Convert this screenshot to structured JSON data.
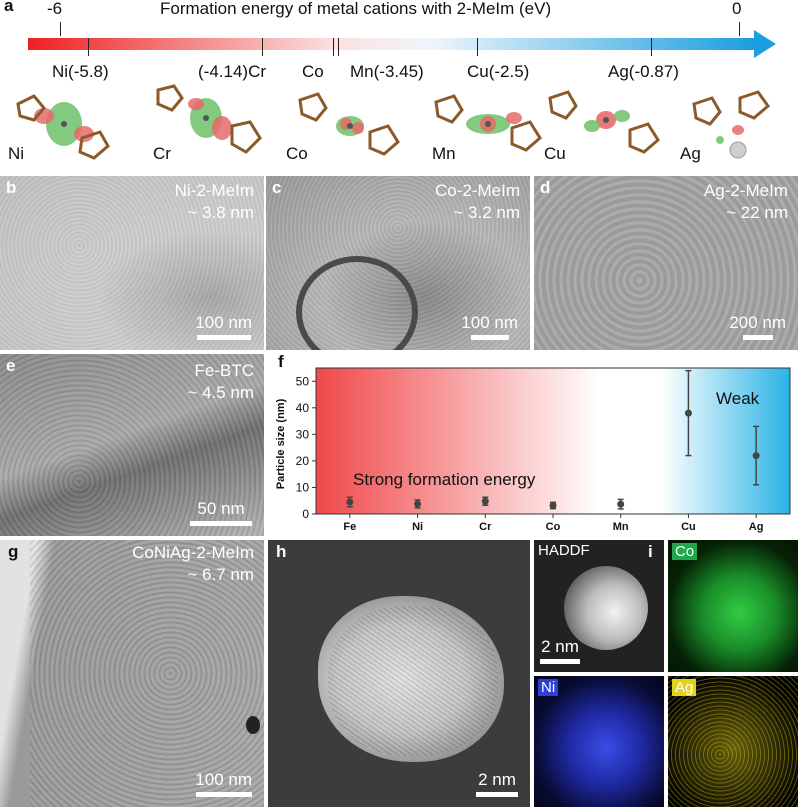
{
  "panel_a": {
    "letter": "a",
    "title": "Formation energy of metal cations with 2-MeIm (eV)",
    "scale_min": "-6",
    "scale_max": "0",
    "gradient_colors": [
      "#ee2424",
      "#ffffff",
      "#1a9ee0"
    ],
    "energy_labels": [
      "Ni(-5.8)",
      "(-4.14)Cr",
      "Co",
      "Mn(-3.45)",
      "Cu(-2.5)",
      "Ag(-0.87)"
    ],
    "molecules": [
      "Ni",
      "Cr",
      "Co",
      "Mn",
      "Cu",
      "Ag"
    ]
  },
  "panel_b": {
    "letter": "b",
    "line1": "Ni-2-MeIm",
    "line2": "~ 3.8 nm",
    "scale": "100 nm"
  },
  "panel_c": {
    "letter": "c",
    "line1": "Co-2-MeIm",
    "line2": "~ 3.2 nm",
    "scale": "100 nm"
  },
  "panel_d": {
    "letter": "d",
    "line1": "Ag-2-MeIm",
    "line2": "~ 22 nm",
    "scale": "200 nm"
  },
  "panel_e": {
    "letter": "e",
    "line1": "Fe-BTC",
    "line2": "~ 4.5 nm",
    "scale": "50 nm"
  },
  "panel_f": {
    "letter": "f"
  },
  "panel_g": {
    "letter": "g",
    "line1": "CoNiAg-2-MeIm",
    "line2": "~ 6.7 nm",
    "scale": "100 nm"
  },
  "panel_h": {
    "letter": "h",
    "scale": "2 nm"
  },
  "panel_i": {
    "letter": "i",
    "haddf_label": "HADDF",
    "scale": "2 nm",
    "maps": [
      {
        "label": "Co",
        "color": "#1fa74a"
      },
      {
        "label": "Ni",
        "color": "#2c3fd8"
      },
      {
        "label": "Ag",
        "color": "#e2d21c"
      }
    ]
  },
  "chart_data": {
    "type": "scatter",
    "title": "",
    "xlabel": "",
    "ylabel": "Particle size (nm)",
    "categories": [
      "Fe",
      "Ni",
      "Cr",
      "Co",
      "Mn",
      "Cu",
      "Ag"
    ],
    "values": [
      4.5,
      3.8,
      4.8,
      3.2,
      3.7,
      38,
      22
    ],
    "errors": [
      1.8,
      1.5,
      1.5,
      1.2,
      1.8,
      16,
      11
    ],
    "yticks": [
      "0",
      "10",
      "20",
      "30",
      "40",
      "50"
    ],
    "ylim": [
      0,
      55
    ],
    "annotations": [
      "Strong formation energy",
      "Weak"
    ],
    "background_colors": [
      "#f0484a",
      "#ffffff",
      "#29b3e6"
    ]
  }
}
